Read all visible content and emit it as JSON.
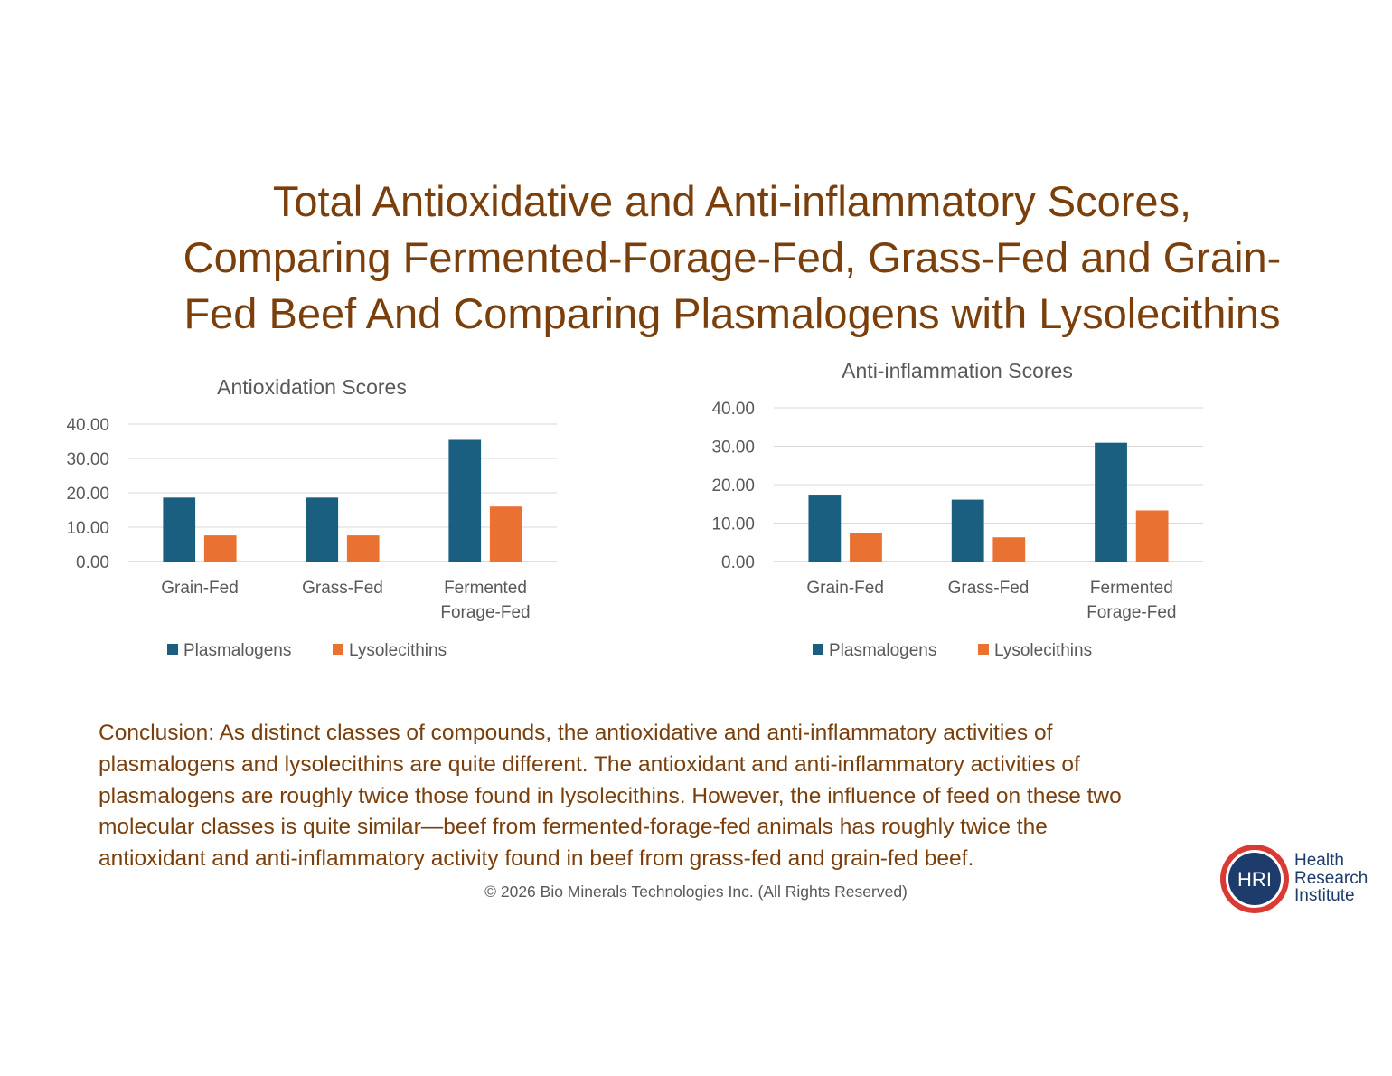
{
  "title_lines": [
    "Total Antioxidative and Anti-inflammatory Scores,",
    "Comparing Fermented-Forage-Fed, Grass-Fed and Grain-",
    "Fed Beef And Comparing Plasmalogens with Lysolecithins"
  ],
  "chart_data": [
    {
      "type": "bar",
      "title": "Antioxidation Scores",
      "categories": [
        [
          "Grain-Fed"
        ],
        [
          "Grass-Fed"
        ],
        [
          "Fermented",
          "Forage-Fed"
        ]
      ],
      "series": [
        {
          "name": "Plasmalogens",
          "values": [
            18.6,
            18.6,
            35.4
          ],
          "color": "#1a5e80"
        },
        {
          "name": "Lysolecithins",
          "values": [
            7.6,
            7.6,
            16.0
          ],
          "color": "#e97132"
        }
      ],
      "yticks": [
        "0.00",
        "10.00",
        "20.00",
        "30.00",
        "40.00"
      ],
      "ylim": [
        0,
        40
      ],
      "legend": "bottom"
    },
    {
      "type": "bar",
      "title": "Anti-inflammation Scores",
      "categories": [
        [
          "Grain-Fed"
        ],
        [
          "Grass-Fed"
        ],
        [
          "Fermented",
          "Forage-Fed"
        ]
      ],
      "series": [
        {
          "name": "Plasmalogens",
          "values": [
            17.4,
            16.1,
            30.9
          ],
          "color": "#1a5e80"
        },
        {
          "name": "Lysolecithins",
          "values": [
            7.5,
            6.3,
            13.3
          ],
          "color": "#e97132"
        }
      ],
      "yticks": [
        "0.00",
        "10.00",
        "20.00",
        "30.00",
        "40.00"
      ],
      "ylim": [
        0,
        40
      ],
      "legend": "bottom"
    }
  ],
  "conclusion_lines": [
    "Conclusion: As distinct classes of compounds, the antioxidative and anti-inflammatory activities of",
    "plasmalogens and lysolecithins are quite different. The antioxidant and anti-inflammatory activities of",
    "plasmalogens are roughly twice those found in lysolecithins. However, the influence of feed on these two",
    "molecular classes is quite similar—beef from fermented-forage-fed animals has roughly twice the",
    "antioxidant and anti-inflammatory activity found in beef from grass-fed and grain-fed beef."
  ],
  "copyright": "© 2026 Bio Minerals Technologies Inc. (All Rights Reserved)",
  "logo": {
    "badge": "HRI",
    "lines": [
      "Health",
      "Research",
      "Institute"
    ],
    "ring_color": "#d93a33",
    "inner_color": "#1d3c6b"
  }
}
